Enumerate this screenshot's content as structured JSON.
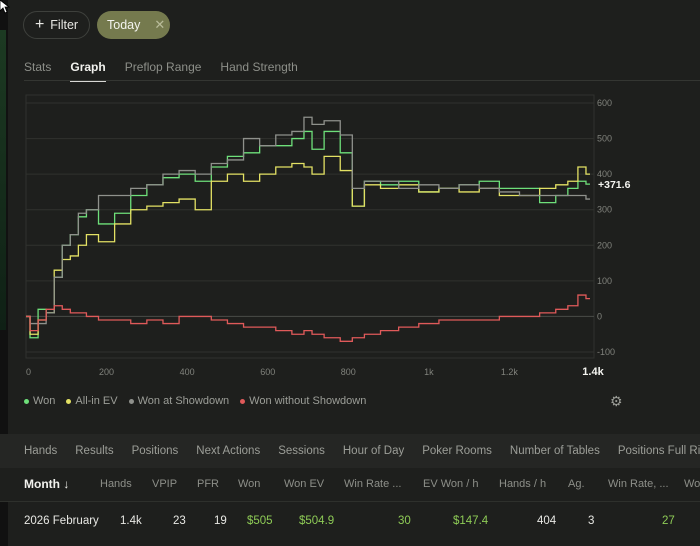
{
  "filter_bar": {
    "filter_label": "Filter",
    "today_label": "Today"
  },
  "tabs": [
    "Stats",
    "Graph",
    "Preflop Range",
    "Hand Strength"
  ],
  "active_tab": "Graph",
  "chart_data": {
    "type": "line",
    "x_axis": {
      "ticks": [
        "0",
        "200",
        "400",
        "600",
        "800",
        "1k",
        "1.2k",
        "1.4k"
      ],
      "range": [
        0,
        1400
      ]
    },
    "y_axis": {
      "ticks": [
        "600",
        "500",
        "400",
        "300",
        "200",
        "100",
        "0",
        "-100"
      ],
      "range": [
        -100,
        600
      ]
    },
    "end_label": "+371.6",
    "series": [
      {
        "name": "Won",
        "color": "#6ee07a",
        "x": [
          0,
          20,
          40,
          60,
          80,
          100,
          120,
          140,
          160,
          200,
          240,
          280,
          320,
          360,
          400,
          440,
          480,
          520,
          560,
          600,
          640,
          680,
          700,
          720,
          760,
          800,
          820,
          860,
          900,
          950,
          1000,
          1050,
          1100,
          1150,
          1200,
          1250,
          1300,
          1330,
          1360,
          1380,
          1400
        ],
        "y": [
          0,
          -60,
          20,
          10,
          110,
          200,
          230,
          280,
          300,
          260,
          290,
          340,
          370,
          390,
          400,
          380,
          420,
          450,
          460,
          480,
          480,
          500,
          520,
          470,
          520,
          460,
          310,
          380,
          370,
          380,
          350,
          360,
          370,
          380,
          360,
          360,
          320,
          340,
          360,
          380,
          372
        ]
      },
      {
        "name": "All-in EV",
        "color": "#e3e164",
        "x": [
          0,
          20,
          40,
          60,
          80,
          100,
          120,
          140,
          160,
          200,
          240,
          280,
          320,
          360,
          400,
          440,
          480,
          520,
          560,
          600,
          640,
          680,
          700,
          720,
          760,
          800,
          820,
          860,
          900,
          950,
          1000,
          1050,
          1100,
          1150,
          1200,
          1250,
          1300,
          1330,
          1360,
          1380,
          1400
        ],
        "y": [
          0,
          -50,
          -10,
          10,
          130,
          160,
          170,
          200,
          230,
          210,
          260,
          300,
          310,
          320,
          330,
          300,
          380,
          400,
          380,
          400,
          420,
          430,
          420,
          400,
          450,
          410,
          310,
          370,
          360,
          370,
          350,
          360,
          350,
          360,
          340,
          340,
          360,
          370,
          380,
          420,
          400
        ]
      },
      {
        "name": "Won at Showdown",
        "color": "#8f918c",
        "x": [
          0,
          20,
          40,
          60,
          80,
          100,
          120,
          140,
          160,
          200,
          240,
          280,
          320,
          360,
          400,
          440,
          480,
          520,
          560,
          600,
          640,
          680,
          700,
          720,
          760,
          800,
          820,
          860,
          900,
          950,
          1000,
          1050,
          1100,
          1150,
          1200,
          1250,
          1300,
          1330,
          1360,
          1380,
          1400
        ],
        "y": [
          0,
          -20,
          -20,
          10,
          110,
          200,
          230,
          290,
          300,
          340,
          340,
          360,
          370,
          400,
          410,
          400,
          430,
          440,
          500,
          480,
          510,
          520,
          560,
          540,
          550,
          510,
          360,
          380,
          380,
          360,
          370,
          360,
          370,
          360,
          350,
          340,
          340,
          340,
          340,
          340,
          330
        ]
      },
      {
        "name": "Won without Showdown",
        "color": "#e05a5a",
        "x": [
          0,
          20,
          40,
          60,
          80,
          100,
          120,
          140,
          160,
          200,
          240,
          280,
          320,
          360,
          400,
          440,
          480,
          520,
          560,
          600,
          640,
          680,
          700,
          720,
          760,
          800,
          820,
          860,
          900,
          950,
          1000,
          1050,
          1100,
          1150,
          1200,
          1250,
          1300,
          1330,
          1360,
          1380,
          1400
        ],
        "y": [
          0,
          -40,
          -10,
          20,
          30,
          20,
          10,
          10,
          0,
          -10,
          -10,
          -20,
          -10,
          -20,
          0,
          0,
          -10,
          -20,
          -30,
          -30,
          -40,
          -50,
          -40,
          -50,
          -60,
          -70,
          -60,
          -50,
          -40,
          -30,
          -20,
          -10,
          -10,
          -10,
          0,
          0,
          10,
          20,
          30,
          60,
          50
        ]
      }
    ]
  },
  "legend": [
    "Won",
    "All-in EV",
    "Won at Showdown",
    "Won without Showdown"
  ],
  "report_tabs": [
    "Hands",
    "Results",
    "Positions",
    "Next Actions",
    "Sessions",
    "Hour of Day",
    "Poker Rooms",
    "Number of Tables",
    "Positions Full Ring"
  ],
  "table": {
    "sort_column": "Month ↓",
    "columns": [
      "Hands",
      "VPIP",
      "PFR",
      "Won",
      "Won EV",
      "Win Rate ...",
      "EV Won / h",
      "Hands / h",
      "Ag.",
      "Win Rate, ...",
      "Wo"
    ],
    "row": {
      "month": "2026 February",
      "hands": "1.4k",
      "vpip": "23",
      "pfr": "19",
      "won": "$505",
      "won_ev": "$504.9",
      "win_rate": "30",
      "ev_won_h": "$147.4",
      "hands_h": "404",
      "ag": "3",
      "win_rate2": "27"
    }
  }
}
